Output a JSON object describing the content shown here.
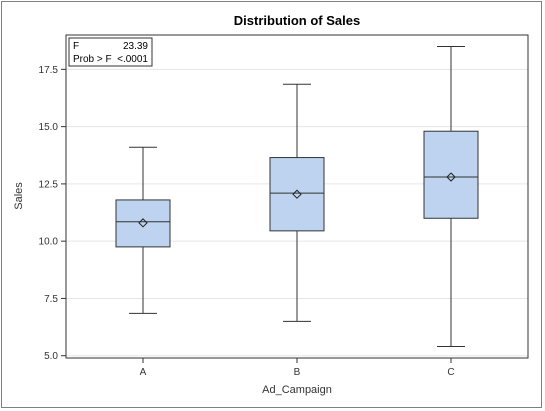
{
  "chart_data": {
    "type": "box",
    "title": "Distribution of Sales",
    "xlabel": "Ad_Campaign",
    "ylabel": "Sales",
    "ylim": [
      4.9,
      19.0
    ],
    "yticks": [
      "5.0",
      "7.5",
      "10.0",
      "12.5",
      "15.0",
      "17.5"
    ],
    "categories": [
      "A",
      "B",
      "C"
    ],
    "boxes": [
      {
        "category": "A",
        "min": 6.85,
        "q1": 9.75,
        "median": 10.85,
        "mean": 10.8,
        "q3": 11.8,
        "max": 14.1
      },
      {
        "category": "B",
        "min": 6.5,
        "q1": 10.45,
        "median": 12.1,
        "mean": 12.05,
        "q3": 13.65,
        "max": 16.85
      },
      {
        "category": "C",
        "min": 5.4,
        "q1": 11.0,
        "median": 12.8,
        "mean": 12.8,
        "q3": 14.8,
        "max": 18.5
      }
    ],
    "grid": true,
    "stats_inset": {
      "rows": [
        {
          "label": "F",
          "value": "23.39"
        },
        {
          "label": "Prob > F",
          "value": "<.0001"
        }
      ]
    },
    "colors": {
      "box_fill": "#bdd3f0",
      "box_stroke": "#333333",
      "whisker": "#333333",
      "grid": "#e6e6e6"
    }
  }
}
